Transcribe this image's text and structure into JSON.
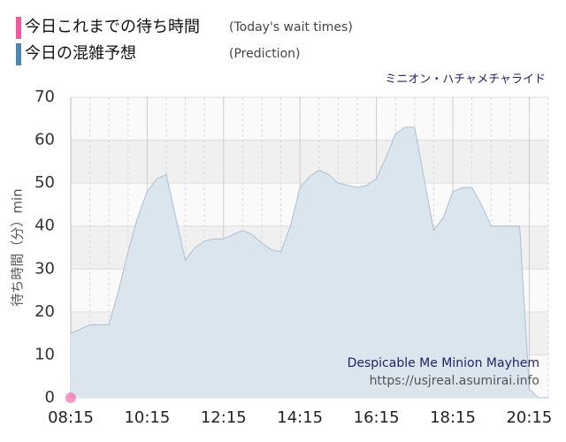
{
  "chart_data": {
    "type": "area",
    "title": "ミニオン・ハチャメチャライド",
    "annotations": [
      "Despicable Me Minion Mayhem",
      "https://usjreal.asumirai.info"
    ],
    "y_label": "待ち時間（分）min",
    "xlim": [
      "08:15",
      "20:45"
    ],
    "xticks": [
      "08:15",
      "10:15",
      "12:15",
      "14:15",
      "16:15",
      "18:15",
      "20:15"
    ],
    "ylim": [
      0,
      70
    ],
    "yticks": [
      0,
      10,
      20,
      30,
      40,
      50,
      60,
      70
    ],
    "grid": true,
    "series": [
      {
        "name": "今日これまでの待ち時間",
        "legend_note": "(Today's wait times)",
        "color": "#f0589f",
        "kind": "point",
        "x": [
          "08:15"
        ],
        "values": [
          0
        ]
      },
      {
        "name": "今日の混雑予想",
        "legend_note": "(Prediction)",
        "color": "#4f86b0",
        "kind": "area",
        "x": [
          "08:15",
          "08:30",
          "08:45",
          "09:00",
          "09:15",
          "09:30",
          "09:45",
          "10:00",
          "10:15",
          "10:30",
          "10:45",
          "11:00",
          "11:15",
          "11:30",
          "11:45",
          "12:00",
          "12:15",
          "12:30",
          "12:45",
          "13:00",
          "13:15",
          "13:30",
          "13:45",
          "14:00",
          "14:15",
          "14:30",
          "14:45",
          "15:00",
          "15:15",
          "15:30",
          "15:45",
          "16:00",
          "16:15",
          "16:30",
          "16:45",
          "17:00",
          "17:15",
          "17:30",
          "17:45",
          "18:00",
          "18:15",
          "18:30",
          "18:45",
          "19:00",
          "19:15",
          "19:30",
          "19:45",
          "20:00",
          "20:15",
          "20:30",
          "20:45"
        ],
        "values": [
          15,
          16,
          17,
          17,
          17,
          25,
          34,
          42,
          48,
          51,
          52,
          42,
          32,
          35,
          36.5,
          37,
          37,
          38,
          39,
          38,
          36,
          34.5,
          34,
          40,
          49,
          51.5,
          53,
          52,
          50,
          49.5,
          49,
          49.5,
          51,
          56,
          61.5,
          63,
          63,
          51,
          39,
          42,
          48,
          49,
          49,
          45,
          40,
          40,
          40,
          40,
          2,
          0,
          0
        ]
      }
    ]
  }
}
